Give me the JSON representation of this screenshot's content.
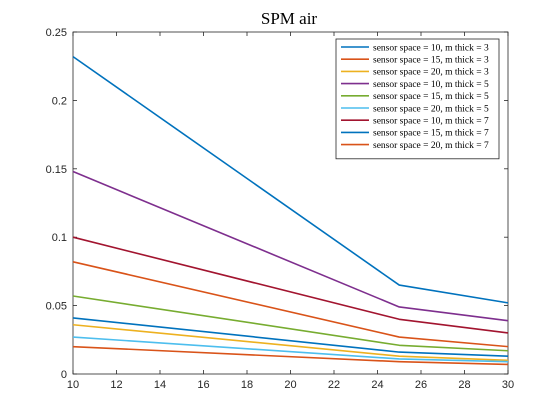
{
  "chart_data": {
    "type": "line",
    "title": "SPM air",
    "xlabel": "",
    "ylabel": "",
    "xlim": [
      10,
      30
    ],
    "ylim": [
      0,
      0.25
    ],
    "xticks": [
      "10",
      "12",
      "14",
      "16",
      "18",
      "20",
      "22",
      "24",
      "26",
      "28",
      "30"
    ],
    "yticks": [
      "0",
      "0.05",
      "0.1",
      "0.15",
      "0.2",
      "0.25"
    ],
    "x": [
      10,
      25,
      30
    ],
    "grid": false,
    "legend_position": "top-right",
    "series": [
      {
        "name": "sensor space = 10, m thick = 3",
        "color": "#0072BD",
        "values": [
          0.232,
          0.065,
          0.052
        ]
      },
      {
        "name": "sensor space = 15, m thick = 3",
        "color": "#D95319",
        "values": [
          0.02,
          0.009,
          0.007
        ]
      },
      {
        "name": "sensor space = 20, m thick = 3",
        "color": "#EDB120",
        "values": [
          0.036,
          0.013,
          0.01
        ]
      },
      {
        "name": "sensor space = 10, m thick = 5",
        "color": "#7E2F8E",
        "values": [
          0.148,
          0.049,
          0.039
        ]
      },
      {
        "name": "sensor space = 15, m thick = 5",
        "color": "#77AC30",
        "values": [
          0.057,
          0.021,
          0.017
        ]
      },
      {
        "name": "sensor space = 20, m thick = 5",
        "color": "#4DBEEE",
        "values": [
          0.027,
          0.011,
          0.009
        ]
      },
      {
        "name": "sensor space = 10, m thick = 7",
        "color": "#A2142F",
        "values": [
          0.1,
          0.04,
          0.03
        ]
      },
      {
        "name": "sensor space = 15, m thick = 7",
        "color": "#0072BD",
        "values": [
          0.041,
          0.016,
          0.013
        ]
      },
      {
        "name": "sensor space = 20, m thick = 7",
        "color": "#D95319",
        "values": [
          0.082,
          0.027,
          0.02
        ]
      }
    ]
  }
}
